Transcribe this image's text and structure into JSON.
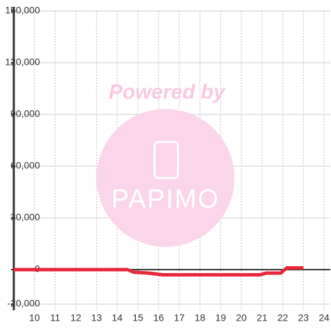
{
  "chart_data": {
    "type": "line",
    "watermark": {
      "line1": "Powered by",
      "line2": "PAPIMO"
    },
    "x": [
      9,
      14.5,
      14.8,
      15.5,
      16.2,
      20.9,
      21.2,
      21.9,
      22.2,
      23
    ],
    "series": [
      {
        "color": "#e8283a",
        "values": [
          0,
          0,
          -1500,
          -2000,
          -3000,
          -3000,
          -2000,
          -2000,
          1000,
          1000
        ]
      }
    ],
    "xlim": [
      9,
      24.3
    ],
    "xticks": [
      10,
      11,
      12,
      13,
      14,
      15,
      16,
      17,
      18,
      19,
      20,
      21,
      22,
      23,
      24
    ],
    "ylim": [
      -20000,
      150000
    ],
    "yticks": [
      {
        "value": -20000,
        "label": "-20,000"
      },
      0,
      {
        "value": 30000,
        "label": "30,000"
      },
      {
        "value": 60000,
        "label": "60,000"
      },
      {
        "value": 90000,
        "label": "90,000"
      },
      {
        "value": 120000,
        "label": "120,000"
      },
      {
        "value": 150000,
        "label": "150,000"
      }
    ],
    "grid": true
  }
}
